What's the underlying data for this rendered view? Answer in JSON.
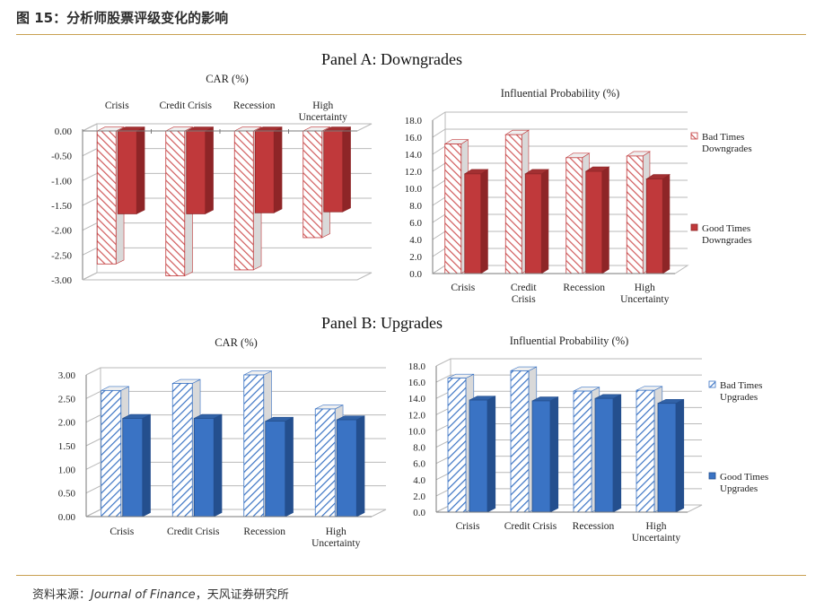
{
  "header": {
    "figure_title": "图 15：分析师股票评级变化的影响"
  },
  "panels": {
    "a_title": "Panel A: Downgrades",
    "b_title": "Panel B: Upgrades"
  },
  "source": {
    "prefix": "资料来源：",
    "journal": "Journal of Finance",
    "suffix": "，天风证券研究所"
  },
  "colors": {
    "red": "#c0393b",
    "red_dark": "#8e2527",
    "blue": "#3a73c4",
    "blue_dark": "#244f8e",
    "grid": "#b9b9b9"
  },
  "chart_data": [
    {
      "id": "a-car",
      "type": "bar",
      "title": "CAR (%)",
      "categories": [
        [
          "Crisis"
        ],
        [
          "Credit Crisis"
        ],
        [
          "Recession"
        ],
        [
          "High",
          "Uncertainty"
        ]
      ],
      "category_position": "top",
      "series": [
        {
          "name": "Bad Times Downgrades",
          "values": [
            -2.68,
            -2.92,
            -2.8,
            -2.15
          ],
          "style": "hatched",
          "color": "red"
        },
        {
          "name": "Good Times Downgrades",
          "values": [
            -1.67,
            -1.67,
            -1.65,
            -1.63
          ],
          "style": "solid",
          "color": "red"
        }
      ],
      "ylim": [
        -3.0,
        0.0
      ],
      "yticks": [
        "0.00",
        "-0.50",
        "-1.00",
        "-1.50",
        "-2.00",
        "-2.50",
        "-3.00"
      ],
      "grid": true,
      "legend": "none"
    },
    {
      "id": "a-prob",
      "type": "bar",
      "title": "Influential Probability (%)",
      "categories": [
        [
          "Crisis"
        ],
        [
          "Credit",
          "Crisis"
        ],
        [
          "Recession"
        ],
        [
          "High",
          "Uncertainty"
        ]
      ],
      "category_position": "bottom",
      "series": [
        {
          "name": "Bad Times Downgrades",
          "values": [
            15.2,
            16.3,
            13.6,
            13.8
          ],
          "style": "hatched",
          "color": "red"
        },
        {
          "name": "Good Times Downgrades",
          "values": [
            11.7,
            11.7,
            12.0,
            11.1
          ],
          "style": "solid",
          "color": "red"
        }
      ],
      "ylim": [
        0,
        18
      ],
      "yticks": [
        "0.0",
        "2.0",
        "4.0",
        "6.0",
        "8.0",
        "10.0",
        "12.0",
        "14.0",
        "16.0",
        "18.0"
      ],
      "grid": true,
      "legend": "right",
      "legend_entries": [
        [
          "Bad Times",
          "Downgrades"
        ],
        [
          "Good Times",
          "Downgrades"
        ]
      ]
    },
    {
      "id": "b-car",
      "type": "bar",
      "title": "CAR (%)",
      "categories": [
        [
          "Crisis"
        ],
        [
          "Credit Crisis"
        ],
        [
          "Recession"
        ],
        [
          "High",
          "Uncertainty"
        ]
      ],
      "category_position": "bottom",
      "series": [
        {
          "name": "Bad Times Upgrades",
          "values": [
            2.67,
            2.82,
            3.0,
            2.28
          ],
          "style": "hatched",
          "color": "blue"
        },
        {
          "name": "Good Times Upgrades",
          "values": [
            2.08,
            2.08,
            2.02,
            2.05
          ],
          "style": "solid",
          "color": "blue"
        }
      ],
      "ylim": [
        0,
        3.0
      ],
      "yticks": [
        "0.00",
        "0.50",
        "1.00",
        "1.50",
        "2.00",
        "2.50",
        "3.00"
      ],
      "grid": true,
      "legend": "none"
    },
    {
      "id": "b-prob",
      "type": "bar",
      "title": "Influential Probability (%)",
      "categories": [
        [
          "Crisis"
        ],
        [
          "Credit Crisis"
        ],
        [
          "Recession"
        ],
        [
          "High",
          "Uncertainty"
        ]
      ],
      "category_position": "bottom",
      "series": [
        {
          "name": "Bad Times Upgrades",
          "values": [
            16.5,
            17.4,
            14.9,
            15.0
          ],
          "style": "hatched",
          "color": "blue"
        },
        {
          "name": "Good Times Upgrades",
          "values": [
            13.8,
            13.7,
            14.0,
            13.4
          ],
          "style": "solid",
          "color": "blue"
        }
      ],
      "ylim": [
        0,
        18
      ],
      "yticks": [
        "0.0",
        "2.0",
        "4.0",
        "6.0",
        "8.0",
        "10.0",
        "12.0",
        "14.0",
        "16.0",
        "18.0"
      ],
      "grid": true,
      "legend": "right",
      "legend_entries": [
        [
          "Bad Times",
          "Upgrades"
        ],
        [
          "Good Times",
          "Upgrades"
        ]
      ]
    }
  ]
}
